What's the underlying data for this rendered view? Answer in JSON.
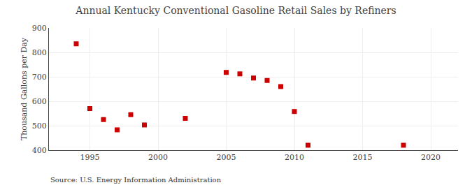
{
  "chart_data": {
    "type": "scatter",
    "title": "Annual Kentucky Conventional Gasoline Retail Sales by Refiners",
    "ylabel": "Thousand Gallons per Day",
    "source": "Source: U.S. Energy Information Administration",
    "x": [
      1994,
      1995,
      1996,
      1997,
      1998,
      1999,
      2002,
      2005,
      2006,
      2007,
      2008,
      2009,
      2010,
      2011,
      2018
    ],
    "values": [
      835,
      570,
      525,
      483,
      545,
      503,
      530,
      718,
      712,
      695,
      685,
      660,
      558,
      420,
      420
    ],
    "color": "#cc0000",
    "marker": "square",
    "xlim": [
      1992,
      2022
    ],
    "ylim": [
      400,
      900
    ],
    "xticks": [
      1995,
      2000,
      2005,
      2010,
      2015,
      2020
    ],
    "yticks": [
      400,
      500,
      600,
      700,
      800,
      900
    ],
    "grid": true
  }
}
